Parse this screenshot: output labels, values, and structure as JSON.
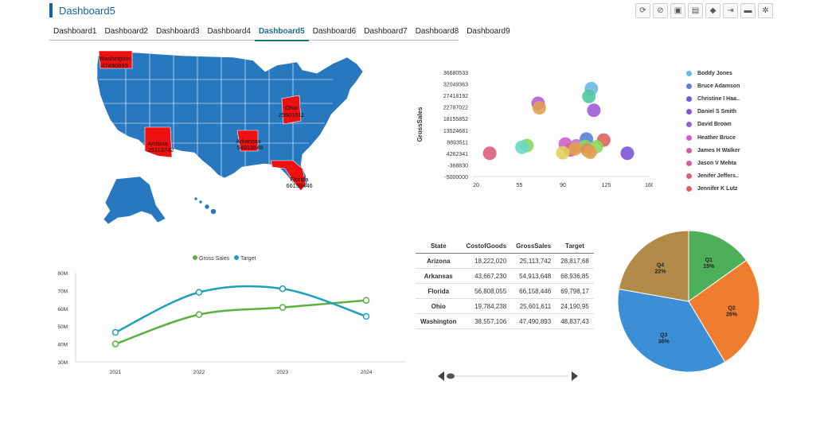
{
  "app": {
    "title": "Dashboard5"
  },
  "toolbar": {
    "icons": [
      "refresh-icon",
      "link-icon",
      "save-icon",
      "save-as-icon",
      "announce-icon",
      "logout-icon",
      "chat-icon",
      "gear-icon"
    ],
    "glyphs": [
      "⟳",
      "⊘",
      "▣",
      "▤",
      "◆",
      "⇥",
      "▬",
      "✲"
    ]
  },
  "tabs": [
    "Dashboard1",
    "Dashboard2",
    "Dashboard3",
    "Dashboard4",
    "Dashboard5",
    "Dashboard6",
    "Dashboard7",
    "Dashboard8",
    "Dashboard9"
  ],
  "active_tab": 4,
  "map": {
    "highlighted_states": [
      {
        "name": "Washington",
        "value": "47490893"
      },
      {
        "name": "Ohio",
        "value": "25601611"
      },
      {
        "name": "Arizona",
        "value": "25113742"
      },
      {
        "name": "Arkansas",
        "value": "54913648"
      },
      {
        "name": "Florida",
        "value": "66158446"
      }
    ],
    "base_color": "#2878c0",
    "highlight_color": "#ee1111"
  },
  "scatter": {
    "ylabel": "GrossSales",
    "y_ticks": [
      "36680533",
      "32049363",
      "27418192",
      "22787022",
      "18155852",
      "13524681",
      "8893511",
      "4262341",
      "-368830",
      "-5000000"
    ],
    "x_ticks": [
      "20",
      "55",
      "90",
      "125",
      "160"
    ],
    "legend": [
      {
        "name": "Boddy Jones",
        "color": "#6bb8e0"
      },
      {
        "name": "Bruce Adamson",
        "color": "#5b7fd6"
      },
      {
        "name": "Christine I Haa..",
        "color": "#6a5ed8"
      },
      {
        "name": "Daniel S Smith",
        "color": "#7a58d8"
      },
      {
        "name": "David Brown",
        "color": "#9b5ed8"
      },
      {
        "name": "Heather Bruce",
        "color": "#c860c8"
      },
      {
        "name": "James H Walker",
        "color": "#d05eb0"
      },
      {
        "name": "Jason V Mehta",
        "color": "#d85e98"
      },
      {
        "name": "Jenifer Jeffers..",
        "color": "#dc5e7c"
      },
      {
        "name": "Jennifer K Lutz",
        "color": "#de6060"
      }
    ]
  },
  "chart_data": [
    {
      "type": "scatter",
      "ylabel": "GrossSales",
      "xlim": [
        20,
        160
      ],
      "ylim": [
        -5000000,
        36680533
      ],
      "points": [
        {
          "x": 113,
          "y": 30200000,
          "color": "#6bb8e0"
        },
        {
          "x": 111,
          "y": 27000000,
          "color": "#4fc8a0"
        },
        {
          "x": 70,
          "y": 24300000,
          "color": "#b060d8"
        },
        {
          "x": 71,
          "y": 22500000,
          "color": "#e0a050"
        },
        {
          "x": 115,
          "y": 21500000,
          "color": "#9b5ed8"
        },
        {
          "x": 109,
          "y": 10000000,
          "color": "#5b7fd6"
        },
        {
          "x": 123,
          "y": 9600000,
          "color": "#de6060"
        },
        {
          "x": 61,
          "y": 7400000,
          "color": "#88d860"
        },
        {
          "x": 57,
          "y": 6700000,
          "color": "#6ad8c8"
        },
        {
          "x": 92,
          "y": 8000000,
          "color": "#d060c8"
        },
        {
          "x": 101,
          "y": 7300000,
          "color": "#c870e0"
        },
        {
          "x": 108,
          "y": 7000000,
          "color": "#88d860"
        },
        {
          "x": 96,
          "y": 5600000,
          "color": "#d85e98"
        },
        {
          "x": 100,
          "y": 6100000,
          "color": "#e0a050"
        },
        {
          "x": 117,
          "y": 6900000,
          "color": "#88d860"
        },
        {
          "x": 110,
          "y": 5500000,
          "color": "#e08860"
        },
        {
          "x": 112,
          "y": 4700000,
          "color": "#e0a050"
        },
        {
          "x": 31,
          "y": 4300000,
          "color": "#dc5e7c"
        },
        {
          "x": 90,
          "y": 4500000,
          "color": "#e0d060"
        },
        {
          "x": 142,
          "y": 4300000,
          "color": "#7a58d8"
        }
      ]
    },
    {
      "type": "line",
      "x": [
        "2021",
        "2022",
        "2023",
        "2024"
      ],
      "y_ticks": [
        "80M",
        "70M",
        "60M",
        "50M",
        "40M",
        "30M"
      ],
      "ylim": [
        30,
        80
      ],
      "unit": "M",
      "series": [
        {
          "name": "Gross Sales",
          "values": [
            40,
            56.5,
            60.5,
            64.5
          ],
          "color": "#5cb040"
        },
        {
          "name": "Target",
          "values": [
            46.5,
            69,
            71,
            55.5
          ],
          "color": "#1ea0b8"
        }
      ]
    },
    {
      "type": "table",
      "columns": [
        "State",
        "CostofGoods",
        "GrossSales",
        "Target"
      ],
      "rows": [
        [
          "Arizona",
          "18,222,020",
          "25,113,742",
          "28,817,68"
        ],
        [
          "Arkansas",
          "43,667,230",
          "54,913,648",
          "68,936,85"
        ],
        [
          "Florida",
          "56,808,055",
          "66,158,446",
          "69,798,17"
        ],
        [
          "Ohio",
          "19,784,238",
          "25,601,611",
          "24,190,95"
        ],
        [
          "Washington",
          "38,557,106",
          "47,490,893",
          "48,837,43"
        ]
      ]
    },
    {
      "type": "pie",
      "slices": [
        {
          "label": "Q1",
          "value": 15,
          "pct": "15%",
          "color": "#4daf59"
        },
        {
          "label": "Q2",
          "value": 26,
          "pct": "26%",
          "color": "#f07c30"
        },
        {
          "label": "Q3",
          "value": 36,
          "pct": "36%",
          "color": "#3c8fd4"
        },
        {
          "label": "Q4",
          "value": 22,
          "pct": "22%",
          "color": "#b28a48"
        }
      ]
    }
  ]
}
